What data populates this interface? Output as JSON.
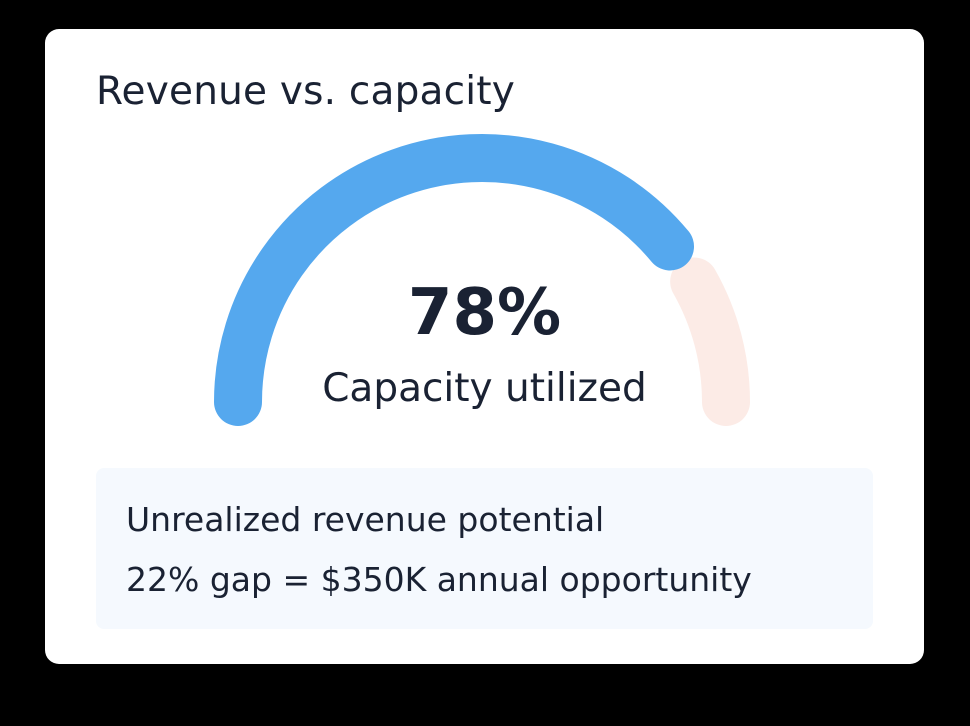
{
  "card": {
    "title": "Revenue vs. capacity"
  },
  "gauge": {
    "value_label": "78%",
    "caption": "Capacity utilized",
    "utilized_fraction": 0.78,
    "colors": {
      "filled": "#55a8ee",
      "remaining": "#fcebe6"
    }
  },
  "info": {
    "title": "Unrealized revenue potential",
    "detail": "22% gap = $350K annual opportunity"
  }
}
